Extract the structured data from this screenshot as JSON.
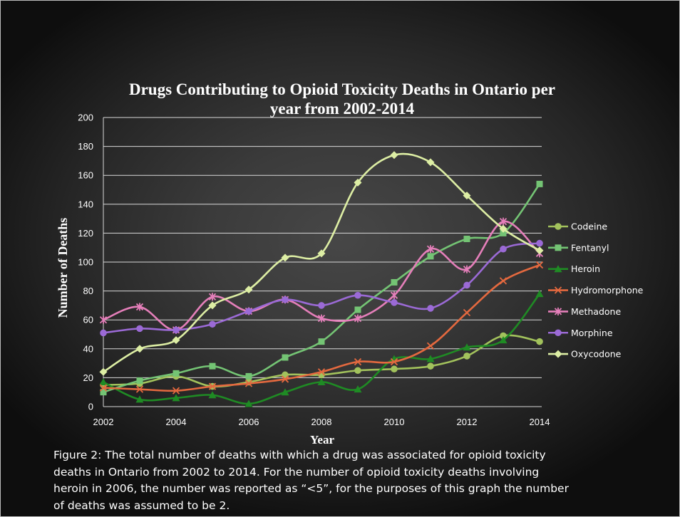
{
  "chart_data": {
    "type": "line",
    "smoothed": true,
    "title": "Drugs Contributing to Opioid Toxicity Deaths in Ontario per year from 2002-2014",
    "xlabel": "Year",
    "ylabel": "Number of Deaths",
    "x": [
      2002,
      2003,
      2004,
      2005,
      2006,
      2007,
      2008,
      2009,
      2010,
      2011,
      2012,
      2013,
      2014
    ],
    "x_ticks": [
      2002,
      2004,
      2006,
      2008,
      2010,
      2012,
      2014
    ],
    "y_ticks": [
      0,
      20,
      40,
      60,
      80,
      100,
      120,
      140,
      160,
      180,
      200
    ],
    "xlim": [
      2002,
      2014
    ],
    "ylim": [
      0,
      200
    ],
    "grid": true,
    "legend": "right",
    "series": [
      {
        "name": "Codeine",
        "color": "#a2c25c",
        "marker": "circle",
        "values": [
          15,
          16,
          21,
          14,
          17,
          22,
          22,
          25,
          26,
          28,
          35,
          49,
          45
        ]
      },
      {
        "name": "Fentanyl",
        "color": "#74c474",
        "marker": "square",
        "values": [
          10,
          18,
          23,
          28,
          21,
          34,
          45,
          67,
          86,
          104,
          116,
          120,
          154
        ]
      },
      {
        "name": "Heroin",
        "color": "#1f8b24",
        "marker": "triangle",
        "values": [
          17,
          5,
          6,
          8,
          2,
          10,
          17,
          12,
          33,
          33,
          41,
          46,
          78
        ]
      },
      {
        "name": "Hydromorphone",
        "color": "#e4693f",
        "marker": "x",
        "values": [
          13,
          12,
          11,
          14,
          16,
          19,
          24,
          31,
          31,
          42,
          65,
          87,
          98
        ]
      },
      {
        "name": "Methadone",
        "color": "#e57fba",
        "marker": "star",
        "values": [
          60,
          69,
          53,
          76,
          66,
          74,
          61,
          61,
          77,
          109,
          95,
          128,
          106
        ]
      },
      {
        "name": "Morphine",
        "color": "#9b6ad6",
        "marker": "circle",
        "values": [
          51,
          54,
          53,
          57,
          66,
          74,
          70,
          77,
          72,
          68,
          84,
          109,
          113
        ]
      },
      {
        "name": "Oxycodone",
        "color": "#ddeea4",
        "marker": "diamond",
        "values": [
          24,
          40,
          46,
          70,
          81,
          103,
          106,
          155,
          174,
          169,
          146,
          123,
          108
        ]
      }
    ]
  },
  "caption": {
    "lines": [
      "Figure 2: The total number of deaths with which a drug was associated for opioid toxicity",
      "deaths in Ontario from 2002 to 2014. For the number of opioid toxicity deaths involving",
      "heroin in 2006, the number was reported as “<5”, for the purposes of this graph the number",
      "of deaths was assumed to be 2."
    ]
  }
}
